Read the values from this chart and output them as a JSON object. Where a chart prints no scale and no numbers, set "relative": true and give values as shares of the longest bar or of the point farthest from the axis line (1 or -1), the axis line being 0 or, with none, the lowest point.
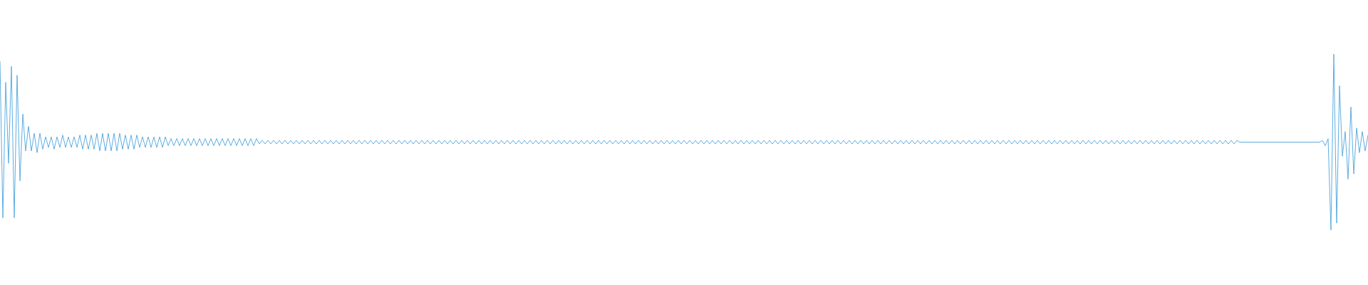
{
  "chart_data": {
    "type": "line",
    "relative": true,
    "color": "#5dade2",
    "categories": [
      null,
      null,
      null,
      null,
      null,
      null,
      null,
      null,
      null,
      null,
      null,
      null,
      null,
      null,
      null,
      null,
      null,
      null,
      null,
      null,
      null,
      null,
      null,
      null,
      null,
      null,
      null,
      null,
      null,
      null,
      null,
      null,
      null,
      null,
      null,
      null,
      null,
      null,
      null,
      null,
      null,
      null,
      null,
      null,
      null,
      null,
      null,
      null,
      null,
      null,
      null,
      null,
      null,
      null,
      null,
      null,
      null,
      null,
      null,
      null,
      null,
      null,
      null,
      null,
      null,
      null,
      null,
      null,
      null,
      null,
      null,
      null,
      null,
      null,
      null,
      null,
      null,
      null,
      null,
      null,
      null,
      null,
      null,
      null,
      null,
      null,
      null,
      null,
      null,
      null,
      null,
      null,
      null,
      null,
      null,
      null,
      null,
      null,
      null,
      null,
      null,
      null,
      null,
      null,
      null,
      null,
      null,
      null,
      null,
      null,
      null,
      null,
      null,
      null,
      null,
      null,
      null,
      null,
      null,
      null,
      null,
      null,
      null,
      null,
      null,
      null,
      null,
      null,
      null,
      null,
      null,
      null,
      null,
      null,
      null,
      null,
      null,
      null,
      null,
      null,
      null,
      null,
      null,
      null,
      null,
      null,
      null,
      null,
      null,
      null,
      null,
      null,
      null,
      null,
      null,
      null,
      null,
      null,
      null,
      null,
      null,
      null,
      null,
      null,
      null,
      null,
      null,
      null,
      null,
      null,
      null,
      null,
      null,
      null,
      null,
      null,
      null,
      null,
      null,
      null,
      null,
      null,
      null,
      null,
      null,
      null,
      null,
      null,
      null,
      null,
      null,
      null,
      null,
      null,
      null,
      null,
      null,
      null,
      null,
      null,
      null,
      null,
      null,
      null,
      null,
      null,
      null,
      null,
      null,
      null,
      null,
      null,
      null,
      null,
      null,
      null,
      null,
      null,
      null,
      null,
      null,
      null,
      null,
      null,
      null,
      null,
      null,
      null,
      null,
      null,
      null,
      null,
      null,
      null,
      null,
      null,
      null,
      null,
      null,
      null,
      null,
      null,
      null,
      null,
      null,
      null,
      null,
      null,
      null,
      null,
      null,
      null,
      null,
      null,
      null,
      null,
      null,
      null,
      null,
      null,
      null,
      null,
      null,
      null,
      null,
      null,
      null,
      null,
      null,
      null,
      null,
      null,
      null,
      null,
      null,
      null,
      null,
      null,
      null,
      null,
      null,
      null,
      null,
      null,
      null,
      null,
      null,
      null,
      null,
      null,
      null,
      null,
      null,
      null,
      null,
      null,
      null,
      null,
      null,
      null,
      null,
      null,
      null,
      null,
      null,
      null,
      null,
      null,
      null,
      null,
      null,
      null,
      null,
      null,
      null,
      null,
      null,
      null,
      null,
      null,
      null,
      null,
      null,
      null,
      null,
      null,
      null,
      null,
      null,
      null,
      null,
      null,
      null,
      null,
      null,
      null,
      null,
      null,
      null,
      null,
      null,
      null,
      null,
      null,
      null,
      null,
      null,
      null,
      null,
      null,
      null,
      null,
      null,
      null,
      null,
      null,
      null,
      null,
      null,
      null,
      null,
      null,
      null,
      null,
      null,
      null,
      null,
      null,
      null,
      null,
      null,
      null,
      null,
      null,
      null,
      null,
      null,
      null,
      null,
      null,
      null,
      null,
      null,
      null,
      null,
      null,
      null,
      null,
      null,
      null,
      null,
      null,
      null,
      null,
      null,
      null,
      null,
      null,
      null,
      null,
      null,
      null,
      null,
      null,
      null,
      null,
      null,
      null,
      null,
      null,
      null,
      null,
      null,
      null,
      null,
      null,
      null,
      null,
      null,
      null,
      null,
      null,
      null,
      null,
      null,
      null,
      null,
      null,
      null,
      null,
      null,
      null,
      null,
      null,
      null,
      null,
      null,
      null,
      null,
      null,
      null,
      null,
      null,
      null,
      null,
      null,
      null,
      null,
      null,
      null,
      null,
      null,
      null,
      null,
      null,
      null,
      null,
      null,
      null,
      null,
      null,
      null,
      null,
      null,
      null,
      null,
      null,
      null,
      null,
      null,
      null,
      null,
      null,
      null,
      null,
      null,
      null,
      null,
      null,
      null,
      null
    ],
    "values": [
      0.96,
      0.07,
      0.84,
      0.38,
      0.93,
      0.07,
      0.88,
      0.28,
      0.66,
      0.45,
      0.59,
      0.45,
      0.55,
      0.44,
      0.55,
      0.46,
      0.53,
      0.47,
      0.53,
      0.46,
      0.53,
      0.47,
      0.54,
      0.47,
      0.53,
      0.47,
      0.53,
      0.47,
      0.54,
      0.46,
      0.54,
      0.46,
      0.54,
      0.46,
      0.55,
      0.45,
      0.55,
      0.45,
      0.55,
      0.45,
      0.55,
      0.45,
      0.55,
      0.46,
      0.54,
      0.46,
      0.54,
      0.46,
      0.54,
      0.47,
      0.53,
      0.47,
      0.53,
      0.47,
      0.53,
      0.47,
      0.53,
      0.47,
      0.53,
      0.48,
      0.52,
      0.48,
      0.52,
      0.48,
      0.52,
      0.48,
      0.52,
      0.48,
      0.52,
      0.48,
      0.52,
      0.48,
      0.52,
      0.48,
      0.52,
      0.48,
      0.52,
      0.48,
      0.52,
      0.48,
      0.52,
      0.48,
      0.52,
      0.48,
      0.52,
      0.48,
      0.52,
      0.48,
      0.52,
      0.48,
      0.52,
      0.49,
      0.51,
      0.49,
      0.51,
      0.49,
      0.51,
      0.49,
      0.51,
      0.49,
      0.51,
      0.49,
      0.51,
      0.49,
      0.51,
      0.49,
      0.51,
      0.49,
      0.51,
      0.49,
      0.51,
      0.49,
      0.51,
      0.49,
      0.51,
      0.49,
      0.51,
      0.49,
      0.51,
      0.49,
      0.51,
      0.49,
      0.51,
      0.49,
      0.51,
      0.49,
      0.51,
      0.49,
      0.51,
      0.49,
      0.51,
      0.49,
      0.51,
      0.49,
      0.51,
      0.49,
      0.51,
      0.49,
      0.51,
      0.49,
      0.51,
      0.49,
      0.51,
      0.49,
      0.51,
      0.49,
      0.51,
      0.49,
      0.51,
      0.49,
      0.51,
      0.49,
      0.51,
      0.49,
      0.51,
      0.49,
      0.51,
      0.49,
      0.51,
      0.49,
      0.51,
      0.49,
      0.51,
      0.49,
      0.51,
      0.49,
      0.51,
      0.49,
      0.51,
      0.49,
      0.51,
      0.49,
      0.51,
      0.49,
      0.51,
      0.49,
      0.51,
      0.49,
      0.51,
      0.49,
      0.51,
      0.49,
      0.51,
      0.49,
      0.51,
      0.49,
      0.51,
      0.49,
      0.51,
      0.49,
      0.51,
      0.49,
      0.51,
      0.49,
      0.51,
      0.49,
      0.51,
      0.49,
      0.51,
      0.49,
      0.51,
      0.49,
      0.51,
      0.49,
      0.51,
      0.49,
      0.51,
      0.49,
      0.51,
      0.49,
      0.51,
      0.49,
      0.51,
      0.49,
      0.51,
      0.49,
      0.51,
      0.49,
      0.51,
      0.49,
      0.51,
      0.49,
      0.51,
      0.49,
      0.51,
      0.49,
      0.51,
      0.49,
      0.51,
      0.49,
      0.51,
      0.49,
      0.51,
      0.49,
      0.51,
      0.49,
      0.51,
      0.49,
      0.51,
      0.49,
      0.51,
      0.49,
      0.51,
      0.49,
      0.51,
      0.49,
      0.51,
      0.49,
      0.51,
      0.49,
      0.51,
      0.49,
      0.51,
      0.49,
      0.51,
      0.49,
      0.51,
      0.49,
      0.51,
      0.49,
      0.51,
      0.49,
      0.51,
      0.49,
      0.51,
      0.49,
      0.51,
      0.49,
      0.51,
      0.49,
      0.51,
      0.49,
      0.51,
      0.49,
      0.51,
      0.49,
      0.51,
      0.49,
      0.51,
      0.49,
      0.51,
      0.49,
      0.51,
      0.49,
      0.51,
      0.49,
      0.51,
      0.49,
      0.51,
      0.49,
      0.51,
      0.49,
      0.51,
      0.49,
      0.51,
      0.49,
      0.51,
      0.49,
      0.51,
      0.49,
      0.51,
      0.49,
      0.51,
      0.49,
      0.51,
      0.49,
      0.51,
      0.49,
      0.51,
      0.49,
      0.51,
      0.49,
      0.51,
      0.49,
      0.51,
      0.49,
      0.51,
      0.49,
      0.51,
      0.49,
      0.51,
      0.49,
      0.51,
      0.49,
      0.51,
      0.49,
      0.51,
      0.49,
      0.51,
      0.49,
      0.51,
      0.49,
      0.51,
      0.49,
      0.51,
      0.49,
      0.51,
      0.49,
      0.51,
      0.49,
      0.51,
      0.49,
      0.51,
      0.49,
      0.51,
      0.49,
      0.51,
      0.49,
      0.51,
      0.49,
      0.51,
      0.49,
      0.51,
      0.49,
      0.51,
      0.49,
      0.51,
      0.49,
      0.51,
      0.49,
      0.51,
      0.49,
      0.51,
      0.49,
      0.51,
      0.49,
      0.51,
      0.49,
      0.51,
      0.49,
      0.51,
      0.49,
      0.51,
      0.49,
      0.51,
      0.49,
      0.51,
      0.49,
      0.51,
      0.49,
      0.51,
      0.49,
      0.51,
      0.49,
      0.51,
      0.49,
      0.51,
      0.49,
      0.51,
      0.49,
      0.51,
      0.49,
      0.51,
      0.49,
      0.51,
      0.49,
      0.51,
      0.49,
      0.51,
      0.49,
      0.51,
      0.49,
      0.51,
      0.49,
      0.51,
      0.49,
      0.51,
      0.49,
      0.51,
      0.49,
      0.51,
      0.49,
      0.51,
      0.49,
      0.51,
      0.49,
      0.51,
      0.49,
      0.51,
      0.49,
      0.51,
      0.49,
      0.51,
      0.49,
      0.51,
      0.49,
      0.51,
      0.49,
      0.51,
      0.49,
      0.51,
      0.49,
      0.51,
      0.49,
      0.51,
      0.5,
      0.5,
      0.5,
      0.5,
      0.5,
      0.5,
      0.5,
      0.5,
      0.5,
      0.5,
      0.5,
      0.5,
      0.5,
      0.5,
      0.5,
      0.5,
      0.5,
      0.5,
      0.5,
      0.5,
      0.5,
      0.5,
      0.5,
      0.5,
      0.5,
      0.5,
      0.5,
      0.5,
      0.5,
      0.51,
      0.48,
      0.52,
      0,
      1,
      0.04,
      0.82,
      0.42,
      0.56,
      0.29,
      0.7,
      0.32,
      0.58,
      0.44,
      0.56,
      0.45,
      0.54
    ]
  }
}
